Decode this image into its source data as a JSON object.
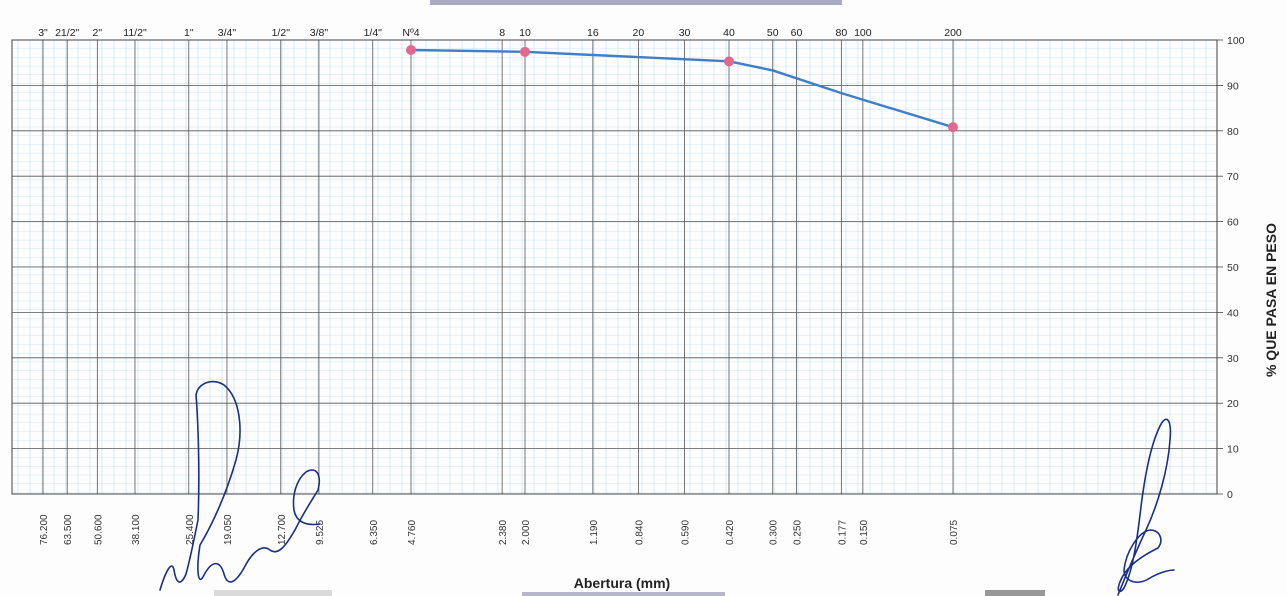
{
  "chart_data": {
    "type": "line",
    "xlabel": "Abertura (mm)",
    "ylabel": "% QUE PASA EN PESO",
    "x_scale": "log",
    "x_reversed": true,
    "ylim": [
      0,
      100
    ],
    "y_ticks": [
      "0",
      "10",
      "20",
      "30",
      "40",
      "50",
      "60",
      "70",
      "80",
      "90",
      "100"
    ],
    "sieves": [
      {
        "name": "3\"",
        "mm": "76.200"
      },
      {
        "name": "21/2\"",
        "mm": "63.500"
      },
      {
        "name": "2\"",
        "mm": "50.600"
      },
      {
        "name": "11/2\"",
        "mm": "38.100"
      },
      {
        "name": "1\"",
        "mm": "25.400"
      },
      {
        "name": "3/4\"",
        "mm": "19.050"
      },
      {
        "name": "1/2\"",
        "mm": "12.700"
      },
      {
        "name": "3/8\"",
        "mm": "9.525"
      },
      {
        "name": "1/4\"",
        "mm": "6.350"
      },
      {
        "name": "Nº4",
        "mm": "4.760"
      },
      {
        "name": "8",
        "mm": "2.380"
      },
      {
        "name": "10",
        "mm": "2.000"
      },
      {
        "name": "16",
        "mm": "1.190"
      },
      {
        "name": "20",
        "mm": "0.840"
      },
      {
        "name": "30",
        "mm": "0.590"
      },
      {
        "name": "40",
        "mm": "0.420"
      },
      {
        "name": "50",
        "mm": "0.300"
      },
      {
        "name": "60",
        "mm": "0.250"
      },
      {
        "name": "80",
        "mm": "0.177"
      },
      {
        "name": "100",
        "mm": "0.150"
      },
      {
        "name": "200",
        "mm": "0.075"
      }
    ],
    "series": [
      {
        "points": [
          {
            "x": 4.76,
            "y": 100
          },
          {
            "x": 2.0,
            "y": 99.6
          },
          {
            "x": 0.42,
            "y": 97.5
          },
          {
            "x": 0.3,
            "y": 95.5
          },
          {
            "x": 0.177,
            "y": 90.5
          },
          {
            "x": 0.075,
            "y": 83.0
          }
        ],
        "markers_at": [
          4.76,
          2.0,
          0.42,
          0.075
        ]
      }
    ],
    "colors": {
      "line": "#3f7ec9",
      "marker": "#e4688e",
      "grid_major": "#555555",
      "grid_minor": "#a6cfe8"
    }
  }
}
